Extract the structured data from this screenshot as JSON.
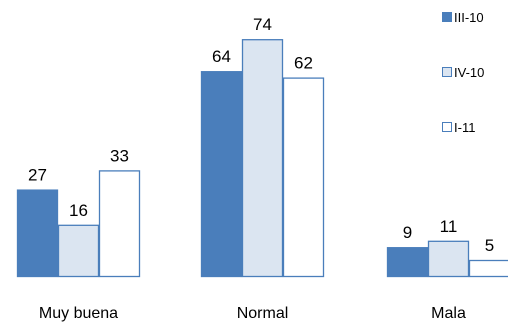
{
  "chart_data": {
    "type": "bar",
    "categories": [
      "Muy buena",
      "Normal",
      "Mala"
    ],
    "series": [
      {
        "name": "III-10",
        "values": [
          27,
          64,
          9
        ],
        "color": "#4a7ebb"
      },
      {
        "name": "IV-10",
        "values": [
          16,
          74,
          11
        ],
        "color": "#dbe5f1"
      },
      {
        "name": "I-11",
        "values": [
          33,
          62,
          5
        ],
        "color": "#ffffff"
      }
    ],
    "bar_border_color": "#4a7ebb",
    "ylim": [
      0,
      80
    ],
    "legend_position": "top-right",
    "grid": false
  }
}
